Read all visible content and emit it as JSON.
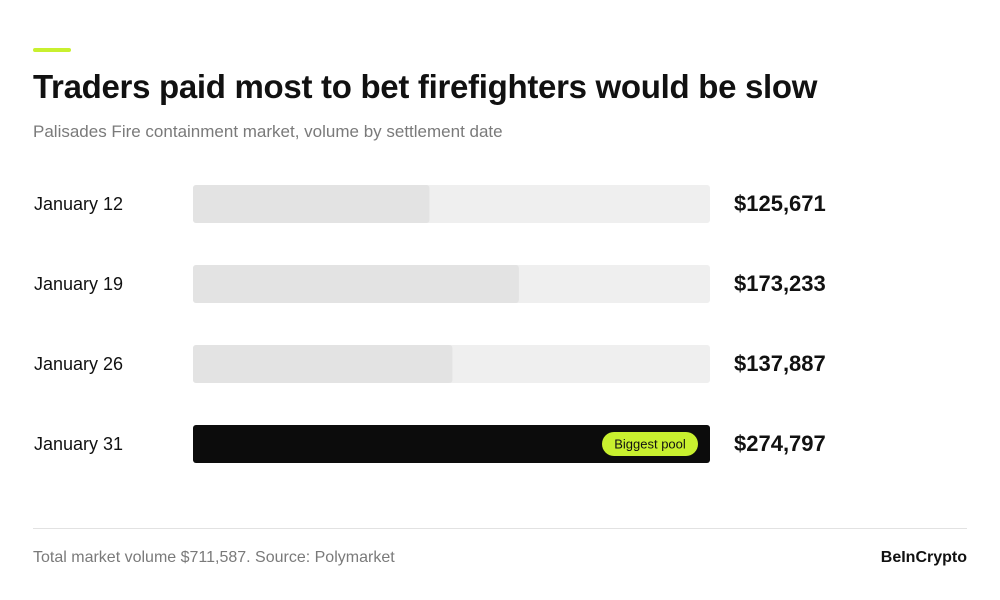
{
  "header": {
    "title": "Traders paid most to bet firefighters would be slow",
    "subtitle": "Palisades Fire containment market, volume by settlement date"
  },
  "colors": {
    "accent": "#c8f02f",
    "track": "#efefef",
    "bar": "#e3e3e3",
    "highlight_bar": "#0c0c0c",
    "text": "#111111",
    "muted": "#7a7a7a"
  },
  "chart_data": {
    "type": "bar",
    "orientation": "horizontal",
    "categories": [
      "January 12",
      "January 19",
      "January 26",
      "January 31"
    ],
    "values": [
      125671,
      173233,
      137887,
      274797
    ],
    "value_labels": [
      "$125,671",
      "$173,233",
      "$137,887",
      "$274,797"
    ],
    "xlim": [
      0,
      274797
    ],
    "highlight_index": 3,
    "highlight_badge": "Biggest pool",
    "title": "Traders paid most to bet firefighters would be slow",
    "subtitle": "Palisades Fire containment market, volume by settlement date",
    "grid": false
  },
  "footer": {
    "note": "Total market volume $711,587.  Source: Polymarket",
    "brand": "BeInCrypto"
  }
}
